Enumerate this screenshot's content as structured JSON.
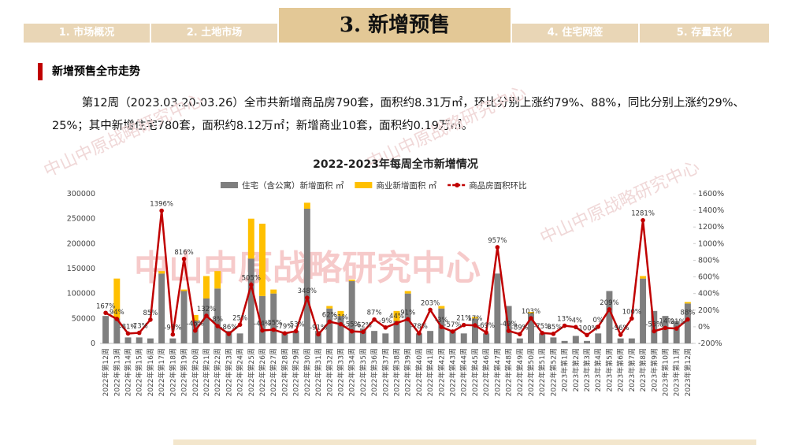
{
  "header": {
    "tabs": [
      "1. 市场概况",
      "2. 土地市场",
      "3. 新增预售",
      "4. 住宅网签",
      "5. 存量去化"
    ]
  },
  "section_title": "新增预售全市走势",
  "paragraph": "第12周（2023.03.20-03.26）全市共新增商品房790套，面积约8.31万㎡，环比分别上涨约79%、88%，同比分别上涨约29%、25%；其中新增住宅780套，面积约8.12万㎡；新增商业10套，面积约0.19万㎡。",
  "watermark": "中山中原战略研究中心",
  "chart_data": {
    "type": "bar-line",
    "title": "2022-2023年每周全市新增情况",
    "categories": [
      "2022年第12周",
      "2022年第13周",
      "2022年第14周",
      "2022年第15周",
      "2022年第16周",
      "2022年第17周",
      "2022年第18周",
      "2022年第19周",
      "2022年第20周",
      "2022年第21周",
      "2022年第22周",
      "2022年第23周",
      "2022年第24周",
      "2022年第25周",
      "2022年第26周",
      "2022年第27周",
      "2022年第28周",
      "2022年第29周",
      "2022年第30周",
      "2022年第31周",
      "2022年第32周",
      "2022年第33周",
      "2022年第34周",
      "2022年第35周",
      "2022年第36周",
      "2022年第37周",
      "2022年第38周",
      "2022年第39周",
      "2022年第40周",
      "2022年第41周",
      "2022年第42周",
      "2022年第43周",
      "2022年第44周",
      "2022年第45周",
      "2022年第46周",
      "2022年第47周",
      "2022年第48周",
      "2022年第49周",
      "2022年第50周",
      "2022年第51周",
      "2022年第52周",
      "2023年第1周",
      "2023年第2周",
      "2023年第3周",
      "2023年第4周",
      "2023年第5周",
      "2023年第6周",
      "2023年第7周",
      "2023年第8周",
      "2023年第9周",
      "2023年第10周",
      "2023年第11周",
      "2023年第12周"
    ],
    "series": [
      {
        "name": "住宅（含公寓）新增面积 ㎡",
        "type": "bar",
        "color": "#7f7f7f",
        "values": [
          55000,
          50000,
          12000,
          12000,
          10000,
          140000,
          10000,
          105000,
          45000,
          90000,
          110000,
          25000,
          20000,
          170000,
          95000,
          100000,
          20000,
          25000,
          270000,
          25000,
          70000,
          55000,
          125000,
          30000,
          25000,
          20000,
          45000,
          100000,
          20000,
          25000,
          70000,
          25000,
          20000,
          50000,
          20000,
          140000,
          75000,
          10000,
          60000,
          20000,
          12000,
          5000,
          15000,
          5000,
          20000,
          105000,
          10000,
          10000,
          130000,
          65000,
          55000,
          45000,
          80000
        ]
      },
      {
        "name": "商业新增面积 ㎡",
        "type": "bar",
        "color": "#ffc000",
        "values": [
          0,
          80000,
          0,
          0,
          0,
          5000,
          0,
          3000,
          12000,
          45000,
          35000,
          0,
          0,
          80000,
          145000,
          8000,
          0,
          0,
          12000,
          0,
          5000,
          10000,
          3000,
          0,
          0,
          0,
          20000,
          5000,
          0,
          0,
          5000,
          0,
          0,
          3000,
          0,
          0,
          0,
          0,
          3000,
          0,
          0,
          0,
          0,
          0,
          0,
          0,
          0,
          0,
          5000,
          0,
          0,
          0,
          3000
        ]
      },
      {
        "name": "商品房面积环比",
        "type": "line",
        "axis": "y2",
        "color": "#c00000",
        "values": [
          167,
          94,
          -81,
          -73,
          85,
          1396,
          -93,
          816,
          -46,
          132,
          8,
          -86,
          25,
          505,
          -44,
          -35,
          -79,
          -53,
          348,
          -91,
          62,
          31,
          -55,
          -62,
          87,
          -9,
          44,
          91,
          -78,
          203,
          -3,
          -57,
          21,
          17,
          -69,
          957,
          -49,
          -89,
          103,
          -75,
          -85,
          13,
          -4,
          -100,
          0,
          209,
          -96,
          100,
          1281,
          -53,
          -14,
          -21,
          88
        ],
        "value_labels": [
          "167%",
          "94%",
          "-81%",
          "-73%",
          "85%",
          "1396%",
          "-93%",
          "816%",
          "-46%",
          "132%",
          "8%",
          "-86%",
          "25%",
          "505%",
          "-44%",
          "-35%",
          "-79%",
          "-53%",
          "348%",
          "-91%",
          "62%",
          "31%",
          "-55%",
          "-62%",
          "87%",
          "-9%",
          "44%",
          "91%",
          "-78%",
          "203%",
          "-3%",
          "-57%",
          "21%",
          "17%",
          "-69%",
          "957%",
          "-49%",
          "-89%",
          "103%",
          "-75%",
          "-85%",
          "13%",
          "-4%",
          "-100%",
          "0%",
          "209%",
          "-96%",
          "100%",
          "1281%",
          "-53%",
          "-14%",
          "-21%",
          "88%"
        ]
      }
    ],
    "ylim": [
      0,
      300000
    ],
    "yticks": [
      0,
      50000,
      100000,
      150000,
      200000,
      250000,
      300000
    ],
    "y2lim": [
      -200,
      1600
    ],
    "y2ticks": [
      {
        "value": -200,
        "label": "-200%"
      },
      {
        "value": 0,
        "label": "0%"
      },
      {
        "value": 200,
        "label": "200%"
      },
      {
        "value": 400,
        "label": "400%"
      },
      {
        "value": 600,
        "label": "600%"
      },
      {
        "value": 800,
        "label": "800%"
      },
      {
        "value": 1000,
        "label": "1000%"
      },
      {
        "value": 1200,
        "label": "1200%"
      },
      {
        "value": 1400,
        "label": "1400%"
      },
      {
        "value": 1600,
        "label": "1600%"
      }
    ],
    "stacked": true,
    "legend": "top"
  }
}
